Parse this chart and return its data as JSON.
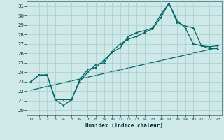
{
  "xlabel": "Humidex (Indice chaleur)",
  "bg_color": "#cfe8e8",
  "grid_color": "#a8cccc",
  "line_color": "#006666",
  "xlim": [
    -0.5,
    23.5
  ],
  "ylim": [
    19.5,
    31.5
  ],
  "xticks": [
    0,
    1,
    2,
    3,
    4,
    5,
    6,
    7,
    8,
    9,
    10,
    11,
    12,
    13,
    14,
    15,
    16,
    17,
    18,
    19,
    20,
    21,
    22,
    23
  ],
  "yticks": [
    20,
    21,
    22,
    23,
    24,
    25,
    26,
    27,
    28,
    29,
    30,
    31
  ],
  "line1_x": [
    0,
    1,
    2,
    3,
    4,
    5,
    6,
    7,
    8,
    9,
    10,
    11,
    12,
    13,
    14,
    15,
    16,
    17,
    18,
    19,
    20,
    21,
    22,
    23
  ],
  "line1_y": [
    23.0,
    23.7,
    23.7,
    21.1,
    21.1,
    21.1,
    23.2,
    24.3,
    24.5,
    25.3,
    26.1,
    26.6,
    27.8,
    28.2,
    28.4,
    28.7,
    30.1,
    31.3,
    29.5,
    28.7,
    27.0,
    26.8,
    26.7,
    26.8
  ],
  "line2_x": [
    0,
    1,
    2,
    3,
    4,
    5,
    6,
    7,
    8,
    9,
    10,
    11,
    12,
    13,
    14,
    15,
    16,
    17,
    18,
    19,
    20,
    21,
    22,
    23
  ],
  "line2_y": [
    23.0,
    23.7,
    23.7,
    21.1,
    20.5,
    21.1,
    23.0,
    24.0,
    24.8,
    25.0,
    26.2,
    27.0,
    27.5,
    27.8,
    28.2,
    28.6,
    29.8,
    31.3,
    29.3,
    28.9,
    28.7,
    26.8,
    26.5,
    26.5
  ],
  "line3_x": [
    0,
    23
  ],
  "line3_y": [
    22.1,
    26.6
  ]
}
